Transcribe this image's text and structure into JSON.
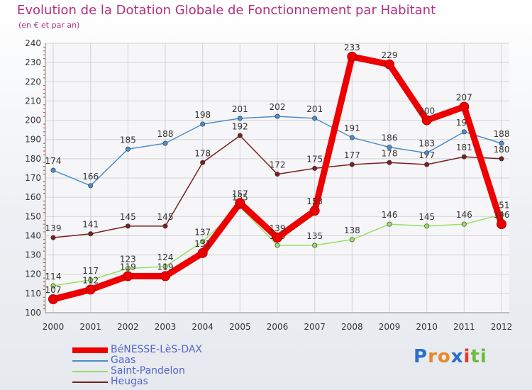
{
  "chart_data": {
    "type": "line",
    "title": "Evolution de la Dotation Globale de Fonctionnement par Habitant",
    "subtitle": "(en € et par an)",
    "xlabel": "",
    "ylabel": "",
    "ylim": [
      100,
      240
    ],
    "yticks": [
      "100",
      "110",
      "120",
      "130",
      "140",
      "150",
      "160",
      "170",
      "180",
      "190",
      "200",
      "210",
      "220",
      "230",
      "240"
    ],
    "categories": [
      "2000",
      "2001",
      "2002",
      "2003",
      "2004",
      "2005",
      "2006",
      "2007",
      "2008",
      "2009",
      "2010",
      "2011",
      "2012"
    ],
    "grid": true,
    "series": [
      {
        "name": "Heugas",
        "color": "#7a2020",
        "values": [
          139,
          141,
          145,
          145,
          178,
          192,
          172,
          175,
          177,
          178,
          177,
          181,
          180
        ]
      },
      {
        "name": "Gaas",
        "color": "#4d8ec9",
        "values": [
          174,
          166,
          185,
          188,
          198,
          201,
          202,
          201,
          191,
          186,
          183,
          194,
          188
        ]
      },
      {
        "name": "Saint-Pandelon",
        "color": "#99dd66",
        "values": [
          114,
          117,
          123,
          124,
          137,
          155,
          135,
          135,
          138,
          146,
          145,
          146,
          151
        ]
      },
      {
        "name": "BéNESSE-LèS-DAX",
        "color": "#ee0000",
        "values": [
          107,
          112,
          119,
          119,
          131,
          157,
          139,
          153,
          233,
          229,
          200,
          207,
          146
        ]
      }
    ],
    "legend_position": "bottom-left",
    "legend_order": [
      "BéNESSE-LèS-DAX",
      "Gaas",
      "Saint-Pandelon",
      "Heugas"
    ]
  },
  "brand": {
    "letters": [
      "P",
      "r",
      "o",
      "x",
      "i",
      "t",
      "i"
    ],
    "colors": [
      "#2a6fc9",
      "#e8892a",
      "#e8892a",
      "#2a6fc9",
      "#e83a2a",
      "#6cbb3c",
      "#6cbb3c"
    ]
  }
}
